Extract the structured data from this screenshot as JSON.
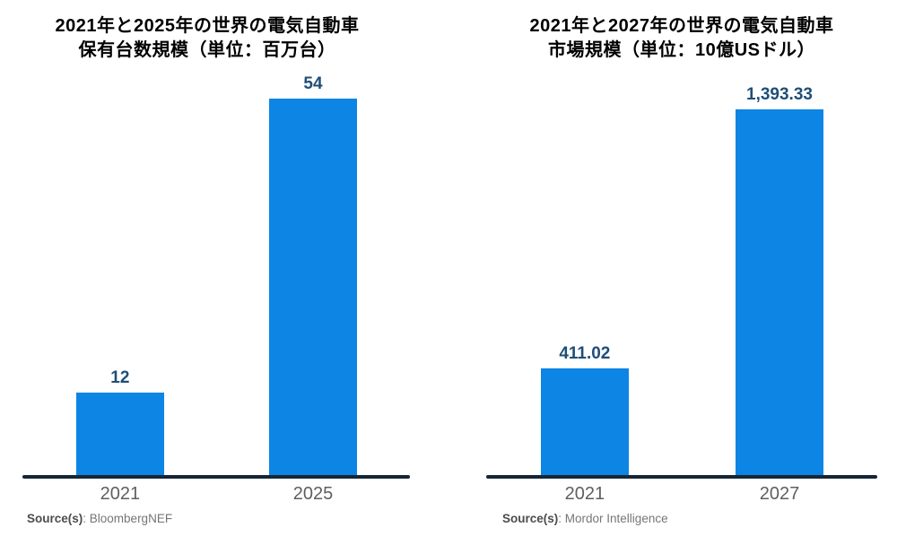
{
  "page": {
    "background": "#ffffff",
    "description_colors": {
      "bar": "#0d85e4",
      "value_label": "#1f4e79",
      "axis_line": "#152636",
      "category_label": "#5f5f5f",
      "title": "#000000",
      "source_bold": "#4c4c4c",
      "source_text": "#767676"
    }
  },
  "chart_data": [
    {
      "type": "bar",
      "title": "2021年と2025年の世界の電気自動車保有台数規模（単位：百万台）",
      "title_line1": "2021年と2025年の世界の電気自動車",
      "title_line2": "保有台数規模（単位：百万台）",
      "unit": "百万台",
      "categories": [
        "2021",
        "2025"
      ],
      "values": [
        12,
        54
      ],
      "value_labels": [
        "12",
        "54"
      ],
      "ylim": [
        0,
        54
      ],
      "grid": false,
      "legend": false,
      "bar_color": "#0d85e4",
      "source_bold": "Source(s)",
      "source_rest": ": BloombergNEF",
      "source": "BloombergNEF"
    },
    {
      "type": "bar",
      "title": "2021年と2027年の世界の電気自動車市場規模（単位：10億USドル）",
      "title_line1": "2021年と2027年の世界の電気自動車",
      "title_line2": "市場規模（単位：10億USドル）",
      "unit": "10億USドル",
      "categories": [
        "2021",
        "2027"
      ],
      "values": [
        411.02,
        1393.33
      ],
      "value_labels": [
        "411.02",
        "1,393.33"
      ],
      "ylim": [
        0,
        1393.33
      ],
      "grid": false,
      "legend": false,
      "bar_color": "#0d85e4",
      "source_bold": "Source(s)",
      "source_rest": ": Mordor Intelligence",
      "source": "Mordor Intelligence"
    }
  ]
}
